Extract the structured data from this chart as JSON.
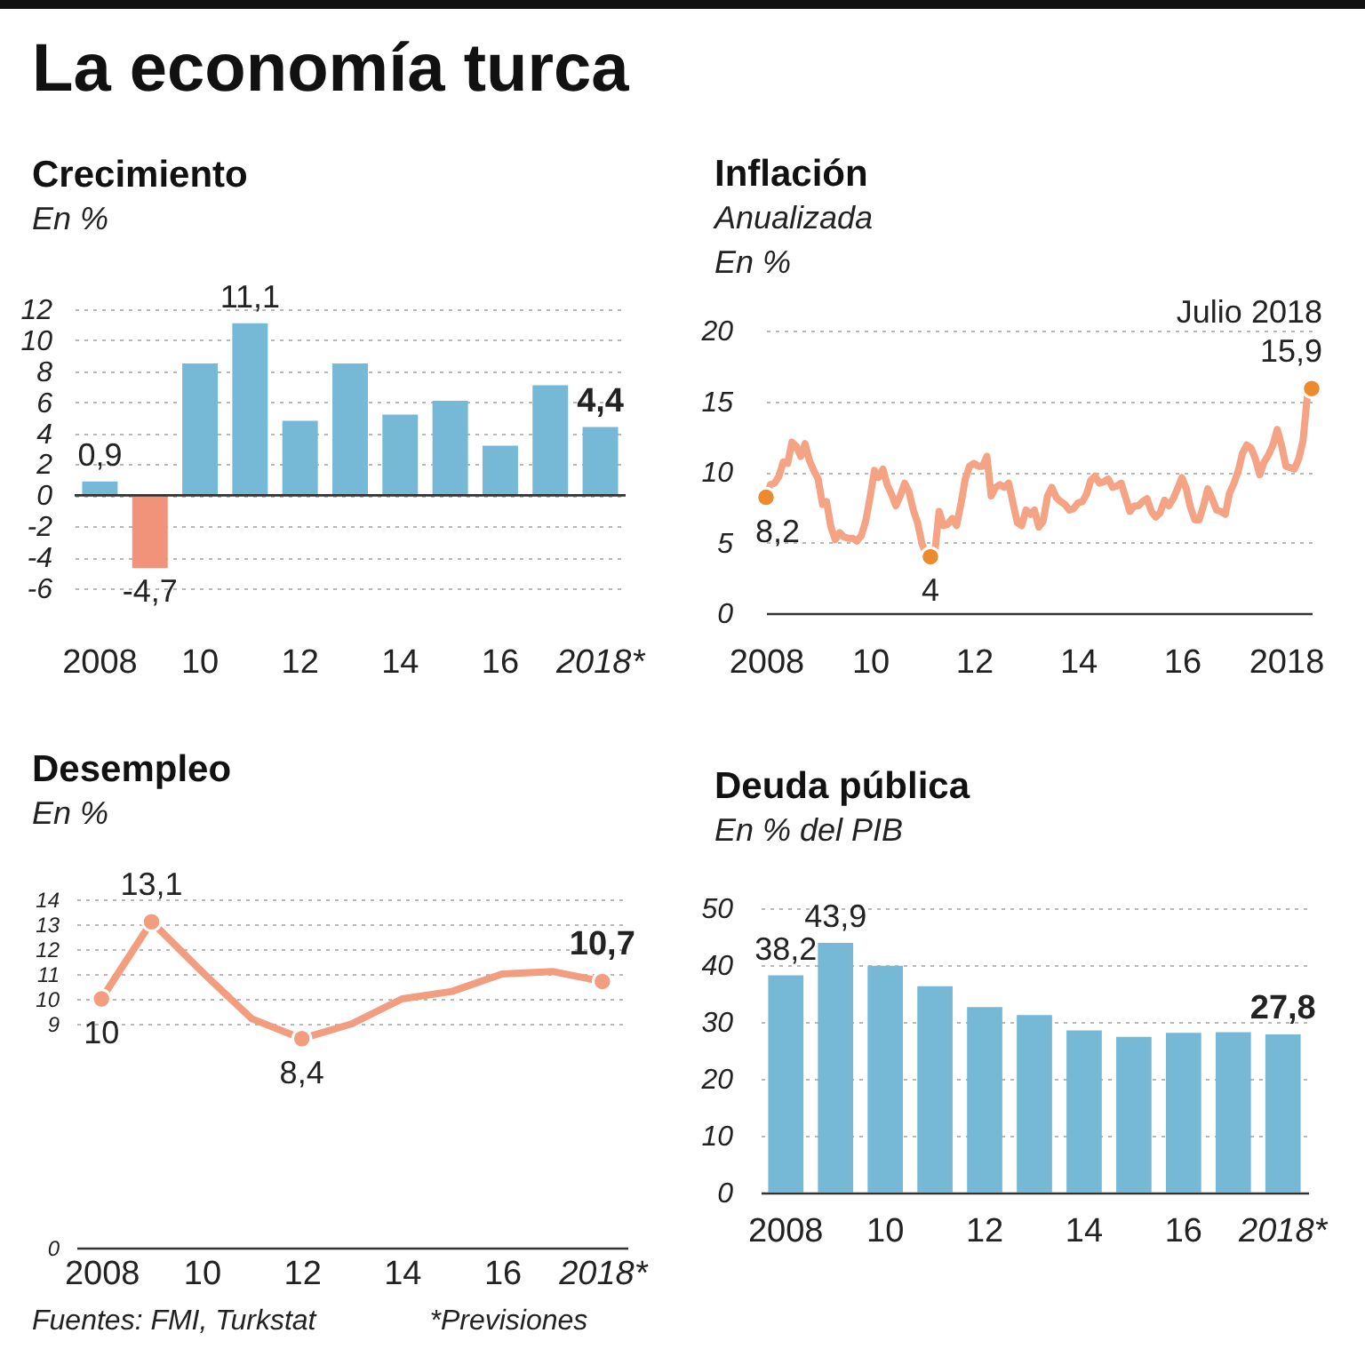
{
  "chart_data": [
    {
      "type": "other",
      "title": "La economía turca"
    },
    {
      "type": "bar",
      "title": "Crecimiento",
      "ylabel": "En %",
      "categories": [
        "2008",
        null,
        "10",
        null,
        "12",
        null,
        "14",
        null,
        "16",
        null,
        "2018*"
      ],
      "values": [
        0.9,
        -4.7,
        8.5,
        11.1,
        4.8,
        8.5,
        5.2,
        6.1,
        3.2,
        7.1,
        4.4
      ],
      "colors": [
        "#76b9d7",
        "#f1937a",
        "#76b9d7",
        "#76b9d7",
        "#76b9d7",
        "#76b9d7",
        "#76b9d7",
        "#76b9d7",
        "#76b9d7",
        "#76b9d7",
        "#76b9d7"
      ],
      "value_labels": [
        "0,9",
        "-4,7",
        null,
        "11,1",
        null,
        null,
        null,
        null,
        null,
        null,
        "4,4"
      ],
      "ylim": [
        -6,
        12
      ],
      "yticks": [
        -6,
        -4,
        -2,
        0,
        2,
        4,
        6,
        8,
        10,
        12
      ],
      "grid": "y",
      "ref_lines": [
        {
          "axis": "y",
          "value": 0,
          "color": "#333333"
        }
      ]
    },
    {
      "type": "line",
      "title": "Inflación",
      "subtitle": "Anualizada",
      "ylabel": "En %",
      "x": [
        "2008-01",
        "2008-02",
        "2008-03",
        "2008-04",
        "2008-05",
        "2008-06",
        "2008-07",
        "2008-08",
        "2008-09",
        "2008-10",
        "2008-11",
        "2008-12",
        "2009-01",
        "2009-02",
        "2009-03",
        "2009-04",
        "2009-05",
        "2009-06",
        "2009-07",
        "2009-08",
        "2009-09",
        "2009-10",
        "2009-11",
        "2009-12",
        "2010-01",
        "2010-02",
        "2010-03",
        "2010-04",
        "2010-05",
        "2010-06",
        "2010-07",
        "2010-08",
        "2010-09",
        "2010-10",
        "2010-11",
        "2010-12",
        "2011-01",
        "2011-02",
        "2011-03",
        "2011-04",
        "2011-05",
        "2011-06",
        "2011-07",
        "2011-08",
        "2011-09",
        "2011-10",
        "2011-11",
        "2011-12",
        "2012-01",
        "2012-02",
        "2012-03",
        "2012-04",
        "2012-05",
        "2012-06",
        "2012-07",
        "2012-08",
        "2012-09",
        "2012-10",
        "2012-11",
        "2012-12",
        "2013-01",
        "2013-02",
        "2013-03",
        "2013-04",
        "2013-05",
        "2013-06",
        "2013-07",
        "2013-08",
        "2013-09",
        "2013-10",
        "2013-11",
        "2013-12",
        "2014-01",
        "2014-02",
        "2014-03",
        "2014-04",
        "2014-05",
        "2014-06",
        "2014-07",
        "2014-08",
        "2014-09",
        "2014-10",
        "2014-11",
        "2014-12",
        "2015-01",
        "2015-02",
        "2015-03",
        "2015-04",
        "2015-05",
        "2015-06",
        "2015-07",
        "2015-08",
        "2015-09",
        "2015-10",
        "2015-11",
        "2015-12",
        "2016-01",
        "2016-02",
        "2016-03",
        "2016-04",
        "2016-05",
        "2016-06",
        "2016-07",
        "2016-08",
        "2016-09",
        "2016-10",
        "2016-11",
        "2016-12",
        "2017-01",
        "2017-02",
        "2017-03",
        "2017-04",
        "2017-05",
        "2017-06",
        "2017-07",
        "2017-08",
        "2017-09",
        "2017-10",
        "2017-11",
        "2017-12",
        "2018-01",
        "2018-02",
        "2018-03",
        "2018-04",
        "2018-05",
        "2018-06",
        "2018-07"
      ],
      "series": [
        {
          "color": "#f4a384",
          "values": [
            8.2,
            9.1,
            9.2,
            9.7,
            10.7,
            10.6,
            12.1,
            11.8,
            11.1,
            12.0,
            10.8,
            10.1,
            9.5,
            7.7,
            7.9,
            6.1,
            5.2,
            5.7,
            5.4,
            5.3,
            5.3,
            5.1,
            5.5,
            6.5,
            8.2,
            10.1,
            9.6,
            10.2,
            9.1,
            8.4,
            7.6,
            8.3,
            9.2,
            8.6,
            7.3,
            6.4,
            4.9,
            4.2,
            4,
            4.3,
            7.2,
            6.2,
            6.3,
            6.7,
            6.2,
            7.7,
            9.5,
            10.4,
            10.6,
            10.4,
            10.4,
            11.1,
            8.3,
            8.9,
            9.1,
            8.9,
            9.2,
            7.8,
            6.4,
            6.2,
            7.3,
            7.0,
            7.3,
            6.1,
            6.5,
            8.3,
            8.9,
            8.2,
            7.9,
            7.7,
            7.3,
            7.4,
            7.8,
            7.9,
            8.4,
            9.4,
            9.7,
            9.2,
            9.3,
            9.5,
            8.9,
            9.0,
            9.2,
            8.2,
            7.2,
            7.6,
            7.6,
            7.9,
            8.1,
            7.2,
            6.8,
            7.1,
            8.0,
            7.6,
            8.1,
            8.8,
            9.6,
            8.8,
            7.5,
            6.6,
            6.6,
            7.6,
            8.8,
            8.1,
            7.3,
            7.2,
            7.0,
            8.5,
            9.2,
            10.1,
            11.3,
            11.9,
            11.7,
            10.9,
            9.8,
            10.7,
            11.2,
            11.9,
            13.0,
            11.9,
            10.4,
            10.3,
            10.2,
            10.9,
            12.2,
            15.4,
            15.9
          ]
        },
        {
          "type": "scatter",
          "color": "#ec8b2e",
          "x": [
            "2008-01",
            "2011-03",
            "2018-07"
          ],
          "values": [
            8.2,
            4,
            15.9
          ],
          "value_labels": [
            "8,2",
            "4",
            "15,9"
          ]
        }
      ],
      "xlim": [
        "2008-01",
        "2018-07"
      ],
      "xticks": [
        "2008",
        {
          "value": "2010",
          "label": "10"
        },
        {
          "value": "2012",
          "label": "12"
        },
        {
          "value": "2014",
          "label": "14"
        },
        {
          "value": "2016",
          "label": "16"
        },
        "2018"
      ],
      "ylim": [
        0,
        20
      ],
      "yticks": [
        0,
        5,
        10,
        15,
        20
      ],
      "grid": "y",
      "annotations": [
        {
          "text": "Julio 2018",
          "x": "2018-07",
          "y": 15.9
        }
      ]
    },
    {
      "type": "line",
      "title": "Desempleo",
      "ylabel": "En %",
      "x": [
        2008,
        2009,
        2010,
        2011,
        2012,
        2013,
        2014,
        2015,
        2016,
        2017,
        2018
      ],
      "series": [
        {
          "color": "#f39d80",
          "values": [
            10,
            13.1,
            11.1,
            9.2,
            8.4,
            9.0,
            10.0,
            10.3,
            11.0,
            11.1,
            10.7
          ]
        },
        {
          "type": "scatter",
          "color": "#f39d80",
          "x": [
            2008,
            2009,
            2012,
            2018
          ],
          "values": [
            10,
            13.1,
            8.4,
            10.7
          ],
          "value_labels": [
            "10",
            "13,1",
            "8,4",
            "10,7"
          ]
        }
      ],
      "xlim": [
        2007.5,
        2018.5
      ],
      "xticks": [
        2008,
        {
          "value": 2010,
          "label": "10"
        },
        {
          "value": 2012,
          "label": "12"
        },
        {
          "value": 2014,
          "label": "14"
        },
        {
          "value": 2016,
          "label": "16"
        },
        {
          "value": 2018,
          "label": "2018*"
        }
      ],
      "ylim": [
        0,
        14
      ],
      "yticks": [
        0,
        9,
        10,
        11,
        12,
        13,
        14
      ],
      "grid": "y"
    },
    {
      "type": "bar",
      "title": "Deuda pública",
      "ylabel": "En % del PIB",
      "categories": [
        "2008",
        null,
        "10",
        null,
        "12",
        null,
        "14",
        null,
        "16",
        null,
        "2018*"
      ],
      "values": [
        38.2,
        43.9,
        39.9,
        36.3,
        32.6,
        31.2,
        28.5,
        27.4,
        28.1,
        28.2,
        27.8
      ],
      "color": "#76b9d7",
      "value_labels": [
        "38,2",
        "43,9",
        null,
        null,
        null,
        null,
        null,
        null,
        null,
        null,
        "27,8"
      ],
      "ylim": [
        0,
        50
      ],
      "yticks": [
        0,
        10,
        20,
        30,
        40,
        50
      ],
      "grid": "y"
    },
    {
      "type": "other",
      "annotations": [
        "Fuentes: FMI, Turkstat",
        "*Previsiones"
      ]
    }
  ]
}
